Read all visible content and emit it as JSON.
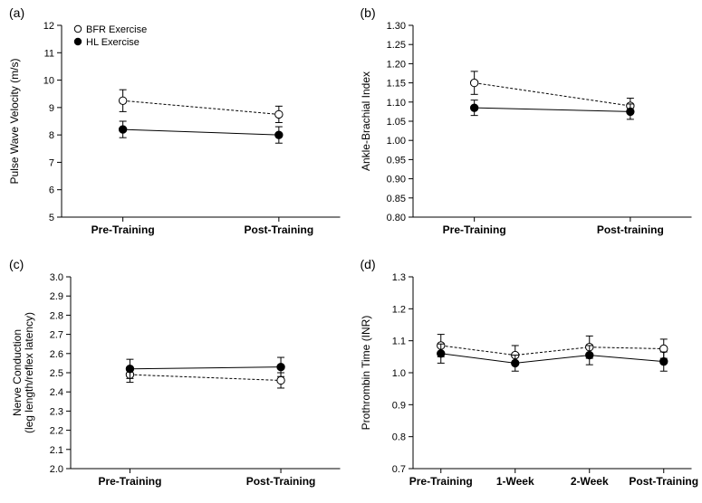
{
  "global": {
    "bg": "#ffffff",
    "axis_color": "#000000",
    "marker_filled_fill": "#000000",
    "marker_open_fill": "#ffffff",
    "marker_stroke": "#000000",
    "marker_radius": 4.2,
    "error_cap_halfwidth": 4,
    "open_dash": "3 2",
    "font": "Arial",
    "tick_fontsize": 11,
    "axis_title_fontsize": 12,
    "category_fontsize": 12,
    "legend_fontsize": 11
  },
  "legend": {
    "items": [
      {
        "label": "BFR Exercise",
        "marker": "open"
      },
      {
        "label": "HL Exercise",
        "marker": "filled"
      }
    ]
  },
  "panels": {
    "a": {
      "label": "(a)",
      "ylabel": "Pulse Wave Velocity (m/s)",
      "categories": [
        "Pre-Training",
        "Post-Training"
      ],
      "ylim": [
        5,
        12
      ],
      "ytick_step": 1,
      "series": [
        {
          "name": "BFR Exercise",
          "marker": "open",
          "y": [
            9.25,
            8.75
          ],
          "err": [
            0.4,
            0.3
          ]
        },
        {
          "name": "HL Exercise",
          "marker": "filled",
          "y": [
            8.2,
            8.0
          ],
          "err": [
            0.3,
            0.3
          ]
        }
      ],
      "show_legend": true
    },
    "b": {
      "label": "(b)",
      "ylabel": "Ankle-Brachial Index",
      "categories": [
        "Pre-Training",
        "Post-training"
      ],
      "ylim": [
        0.8,
        1.3
      ],
      "ytick_step": 0.05,
      "series": [
        {
          "name": "BFR Exercise",
          "marker": "open",
          "y": [
            1.15,
            1.09
          ],
          "err": [
            0.03,
            0.02
          ]
        },
        {
          "name": "HL Exercise",
          "marker": "filled",
          "y": [
            1.085,
            1.075
          ],
          "err": [
            0.02,
            0.02
          ]
        }
      ],
      "show_legend": false
    },
    "c": {
      "label": "(c)",
      "ylabel": "Nerve Conduction",
      "ylabel2": "(leg length/reflex latency)",
      "categories": [
        "Pre-Training",
        "Post-Training"
      ],
      "ylim": [
        2,
        3
      ],
      "ytick_step": 0.1,
      "series": [
        {
          "name": "BFR Exercise",
          "marker": "open",
          "y": [
            2.49,
            2.46
          ],
          "err": [
            0.04,
            0.04
          ]
        },
        {
          "name": "HL Exercise",
          "marker": "filled",
          "y": [
            2.52,
            2.53
          ],
          "err": [
            0.05,
            0.05
          ]
        }
      ],
      "show_legend": false
    },
    "d": {
      "label": "(d)",
      "ylabel": "Prothrombin Time (INR)",
      "categories": [
        "Pre-Training",
        "1-Week",
        "2-Week",
        "Post-Training"
      ],
      "ylim": [
        0.7,
        1.3
      ],
      "ytick_step": 0.1,
      "series": [
        {
          "name": "BFR Exercise",
          "marker": "open",
          "y": [
            1.085,
            1.055,
            1.08,
            1.075
          ],
          "err": [
            0.035,
            0.03,
            0.035,
            0.03
          ]
        },
        {
          "name": "HL Exercise",
          "marker": "filled",
          "y": [
            1.06,
            1.03,
            1.055,
            1.035
          ],
          "err": [
            0.03,
            0.025,
            0.03,
            0.03
          ]
        }
      ],
      "show_legend": false
    }
  }
}
